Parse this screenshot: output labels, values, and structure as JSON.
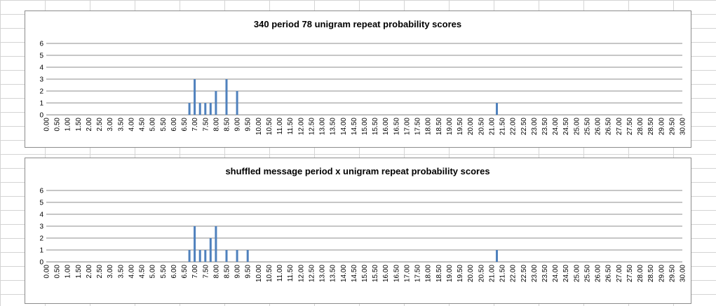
{
  "chart_data": [
    {
      "type": "bar",
      "title": "340 period 78 unigram repeat probability scores",
      "xlabel": "",
      "ylabel": "",
      "ylim": [
        0,
        6
      ],
      "yticks": [
        "0",
        "1",
        "2",
        "3",
        "4",
        "5",
        "6"
      ],
      "categories": [
        "0.00",
        "0.50",
        "1.00",
        "1.50",
        "2.00",
        "2.50",
        "3.00",
        "3.50",
        "4.00",
        "4.50",
        "5.00",
        "5.50",
        "6.00",
        "6.50",
        "7.00",
        "7.50",
        "8.00",
        "8.50",
        "9.00",
        "9.50",
        "10.00",
        "10.50",
        "11.00",
        "11.50",
        "12.00",
        "12.50",
        "13.00",
        "13.50",
        "14.00",
        "14.50",
        "15.00",
        "15.50",
        "16.00",
        "16.50",
        "17.00",
        "17.50",
        "18.00",
        "18.50",
        "19.00",
        "19.50",
        "20.00",
        "20.50",
        "21.00",
        "21.50",
        "22.00",
        "22.50",
        "23.00",
        "23.50",
        "24.00",
        "24.50",
        "25.00",
        "25.50",
        "26.00",
        "26.50",
        "27.00",
        "27.50",
        "28.00",
        "28.50",
        "29.00",
        "29.50",
        "30.00"
      ],
      "points": [
        {
          "x": 6.75,
          "y": 1
        },
        {
          "x": 7.0,
          "y": 3
        },
        {
          "x": 7.25,
          "y": 1
        },
        {
          "x": 7.5,
          "y": 1
        },
        {
          "x": 7.75,
          "y": 1
        },
        {
          "x": 8.0,
          "y": 2
        },
        {
          "x": 8.5,
          "y": 3
        },
        {
          "x": 9.0,
          "y": 2
        },
        {
          "x": 21.25,
          "y": 1
        }
      ],
      "grid": true,
      "color": "#4f81bd"
    },
    {
      "type": "bar",
      "title": "shuffled message period x unigram repeat probability scores",
      "xlabel": "",
      "ylabel": "",
      "ylim": [
        0,
        6
      ],
      "yticks": [
        "0",
        "1",
        "2",
        "3",
        "4",
        "5",
        "6"
      ],
      "categories": [
        "0.00",
        "0.50",
        "1.00",
        "1.50",
        "2.00",
        "2.50",
        "3.00",
        "3.50",
        "4.00",
        "4.50",
        "5.00",
        "5.50",
        "6.00",
        "6.50",
        "7.00",
        "7.50",
        "8.00",
        "8.50",
        "9.00",
        "9.50",
        "10.00",
        "10.50",
        "11.00",
        "11.50",
        "12.00",
        "12.50",
        "13.00",
        "13.50",
        "14.00",
        "14.50",
        "15.00",
        "15.50",
        "16.00",
        "16.50",
        "17.00",
        "17.50",
        "18.00",
        "18.50",
        "19.00",
        "19.50",
        "20.00",
        "20.50",
        "21.00",
        "21.50",
        "22.00",
        "22.50",
        "23.00",
        "23.50",
        "24.00",
        "24.50",
        "25.00",
        "25.50",
        "26.00",
        "26.50",
        "27.00",
        "27.50",
        "28.00",
        "28.50",
        "29.00",
        "29.50",
        "30.00"
      ],
      "points": [
        {
          "x": 6.75,
          "y": 1
        },
        {
          "x": 7.0,
          "y": 3
        },
        {
          "x": 7.25,
          "y": 1
        },
        {
          "x": 7.5,
          "y": 1
        },
        {
          "x": 7.75,
          "y": 2
        },
        {
          "x": 8.0,
          "y": 3
        },
        {
          "x": 8.5,
          "y": 1
        },
        {
          "x": 9.0,
          "y": 1
        },
        {
          "x": 9.5,
          "y": 1
        },
        {
          "x": 21.25,
          "y": 1
        }
      ],
      "grid": true,
      "color": "#4f81bd"
    }
  ]
}
